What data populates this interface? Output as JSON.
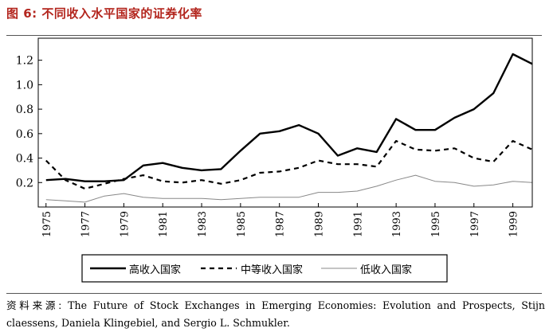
{
  "figure": {
    "title": "图 6:  不同收入水平国家的证券化率",
    "source_label": "资料来源:",
    "source_text": "The Future of Stock Exchanges in Emerging Economies: Evolution and Prospects, Stijn claessens, Daniela Klingebiel, and Sergio L. Schmukler."
  },
  "colors": {
    "title": "#b3261e",
    "high": "#000000",
    "middle": "#000000",
    "low": "#888888"
  },
  "chart_data": {
    "type": "line",
    "x": [
      1975,
      1976,
      1977,
      1978,
      1979,
      1980,
      1981,
      1982,
      1983,
      1984,
      1985,
      1986,
      1987,
      1988,
      1989,
      1990,
      1991,
      1992,
      1993,
      1994,
      1995,
      1996,
      1997,
      1998,
      1999,
      2000
    ],
    "xticks": [
      1975,
      1977,
      1979,
      1981,
      1983,
      1985,
      1987,
      1989,
      1991,
      1993,
      1995,
      1997,
      1999
    ],
    "xlim": [
      1974.6,
      2000
    ],
    "ylim": [
      0,
      1.38
    ],
    "yticks": [
      0.2,
      0.4,
      0.6,
      0.8,
      1.0,
      1.2
    ],
    "ytick_labels": [
      "0.2",
      "0.4",
      "0.6",
      "0.8",
      "1.0",
      "1.2"
    ],
    "grid": false,
    "legend_position": "bottom",
    "series": [
      {
        "name": "高收入国家",
        "style": "solid-thick",
        "values": [
          0.22,
          0.23,
          0.21,
          0.21,
          0.22,
          0.34,
          0.36,
          0.32,
          0.3,
          0.31,
          0.46,
          0.6,
          0.62,
          0.67,
          0.6,
          0.42,
          0.48,
          0.45,
          0.72,
          0.63,
          0.63,
          0.73,
          0.8,
          0.93,
          1.25,
          1.17
        ]
      },
      {
        "name": "中等收入国家",
        "style": "dashed",
        "values": [
          0.38,
          0.22,
          0.15,
          0.19,
          0.23,
          0.26,
          0.21,
          0.2,
          0.22,
          0.19,
          0.22,
          0.28,
          0.29,
          0.32,
          0.38,
          0.35,
          0.35,
          0.33,
          0.54,
          0.47,
          0.46,
          0.48,
          0.4,
          0.37,
          0.54,
          0.47
        ]
      },
      {
        "name": "低收入国家",
        "style": "solid-thin",
        "values": [
          0.06,
          0.05,
          0.04,
          0.09,
          0.11,
          0.08,
          0.07,
          0.07,
          0.07,
          0.06,
          0.07,
          0.08,
          0.08,
          0.08,
          0.12,
          0.12,
          0.13,
          0.17,
          0.22,
          0.26,
          0.21,
          0.2,
          0.17,
          0.18,
          0.21,
          0.2
        ]
      }
    ]
  }
}
